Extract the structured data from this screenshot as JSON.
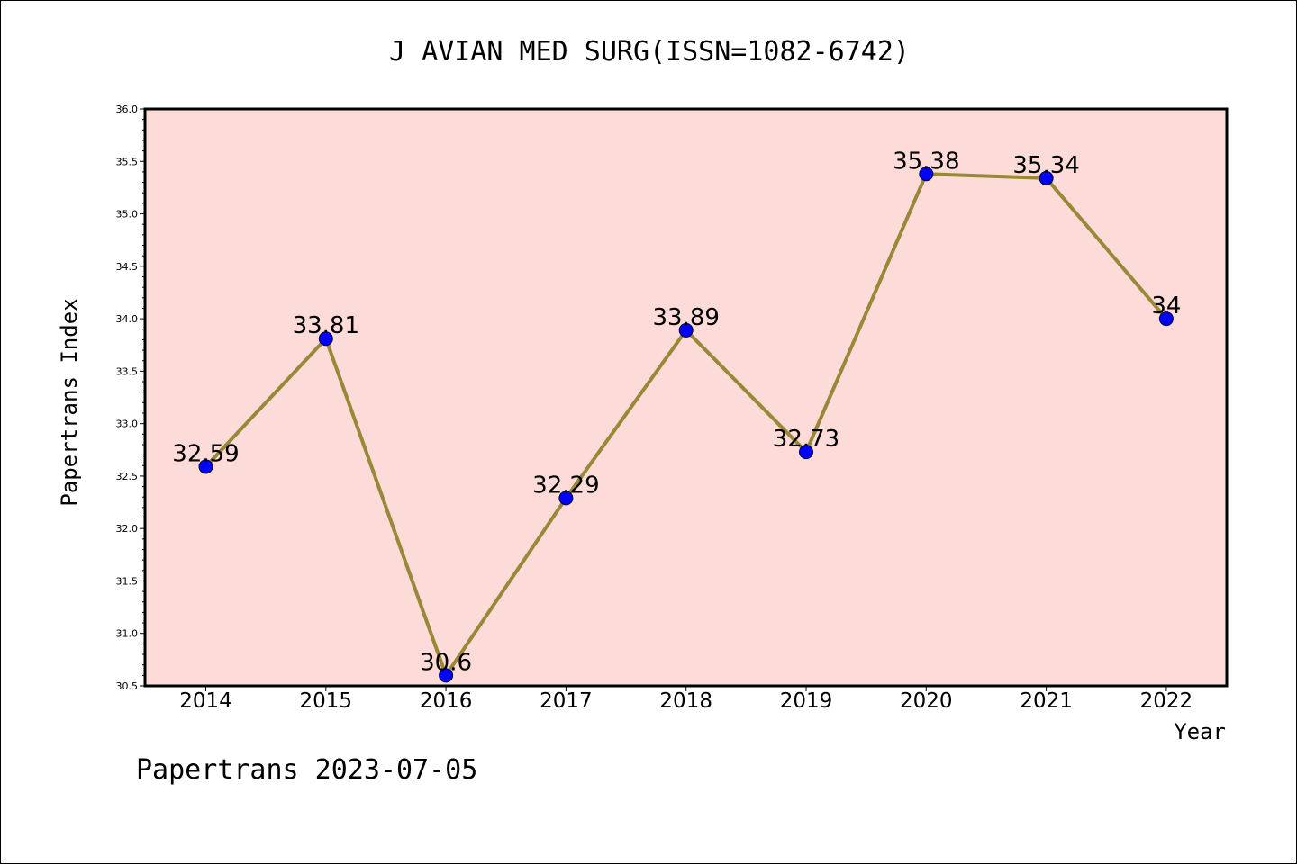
{
  "chart_data": {
    "type": "line",
    "title": "J AVIAN MED SURG(ISSN=1082-6742)",
    "xlabel": "Year",
    "ylabel": "Papertrans Index",
    "footer": "Papertrans 2023-07-05",
    "categories": [
      "2014",
      "2015",
      "2016",
      "2017",
      "2018",
      "2019",
      "2020",
      "2021",
      "2022"
    ],
    "values": [
      32.59,
      33.81,
      30.6,
      32.29,
      33.89,
      32.73,
      35.38,
      35.34,
      34
    ],
    "data_labels": [
      "32.59",
      "33.81",
      "30.6",
      "32.29",
      "33.89",
      "32.73",
      "35.38",
      "35.34",
      "34"
    ],
    "ylim": [
      30.5,
      36.0
    ],
    "yticks": [
      "30.5",
      "31.0",
      "31.5",
      "32.0",
      "32.5",
      "33.0",
      "33.5",
      "34.0",
      "34.5",
      "35.0",
      "35.5",
      "36.0"
    ],
    "grid": false,
    "colors": {
      "plot_background": "#fddbd8",
      "line": "#998837",
      "marker": "#0000ff",
      "axes": "#000000"
    }
  }
}
